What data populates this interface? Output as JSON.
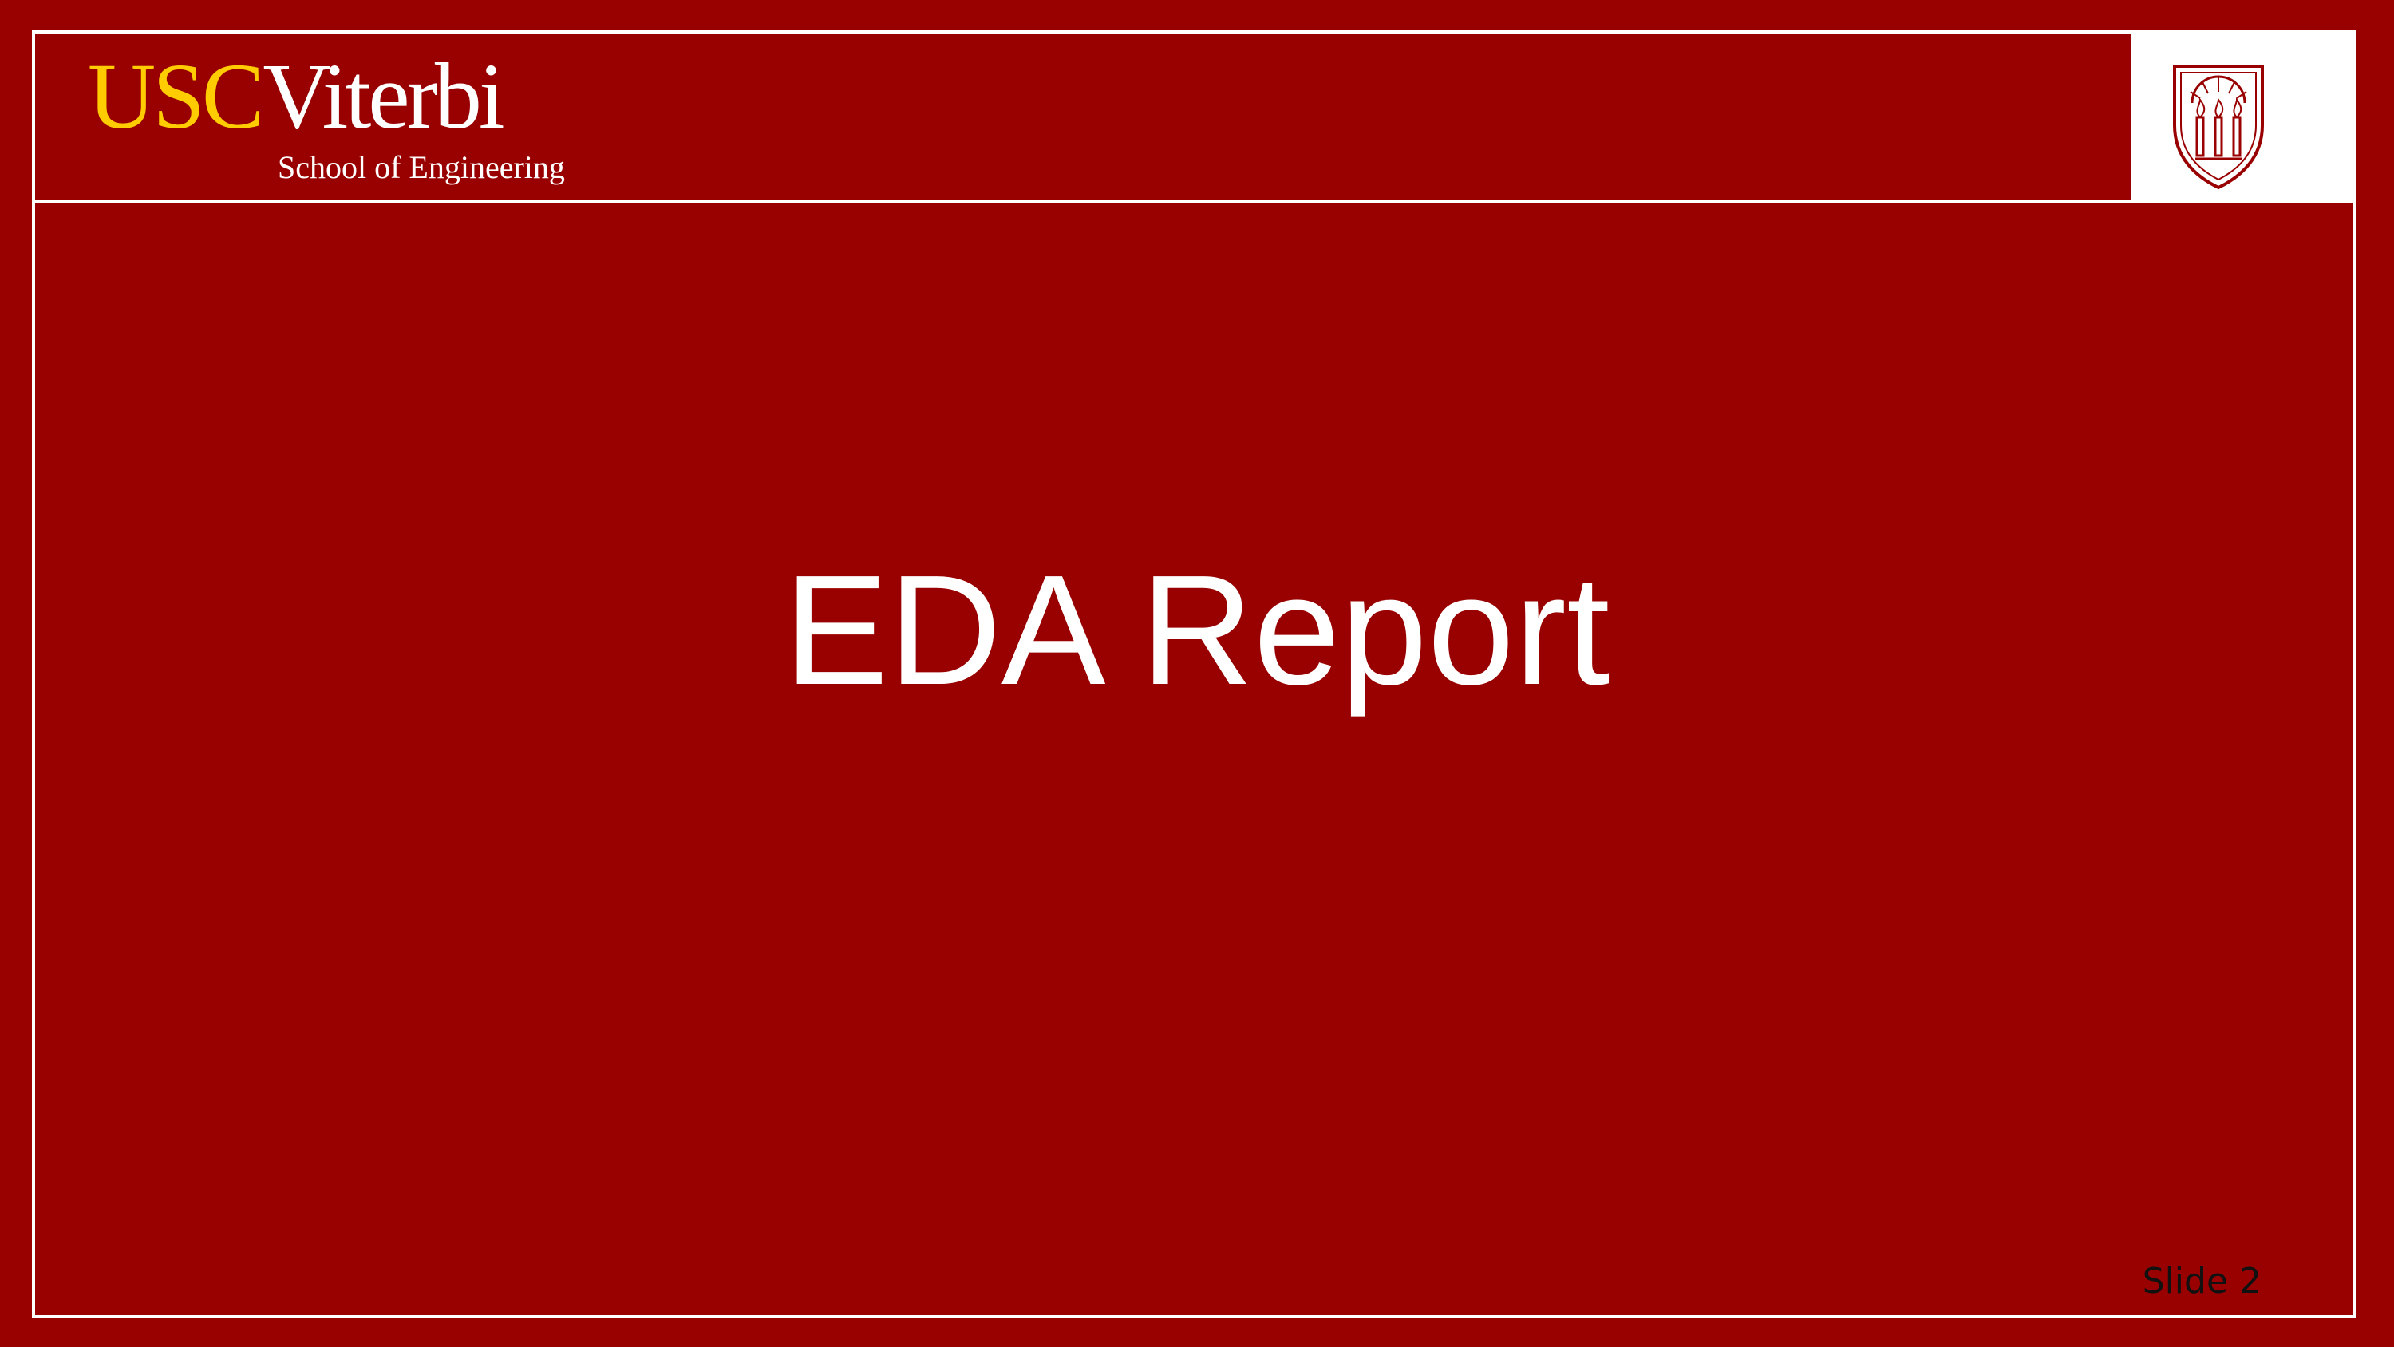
{
  "header": {
    "logo": {
      "usc": "USC",
      "viterbi": "Viterbi",
      "subtitle": "School of Engineering"
    },
    "seal": "usc-seal-icon"
  },
  "main": {
    "title": "EDA Report"
  },
  "footer": {
    "slide_number": "Slide 2"
  },
  "colors": {
    "background": "#990000",
    "gold": "#FFCC00",
    "white": "#ffffff",
    "seal_line": "#990000"
  }
}
